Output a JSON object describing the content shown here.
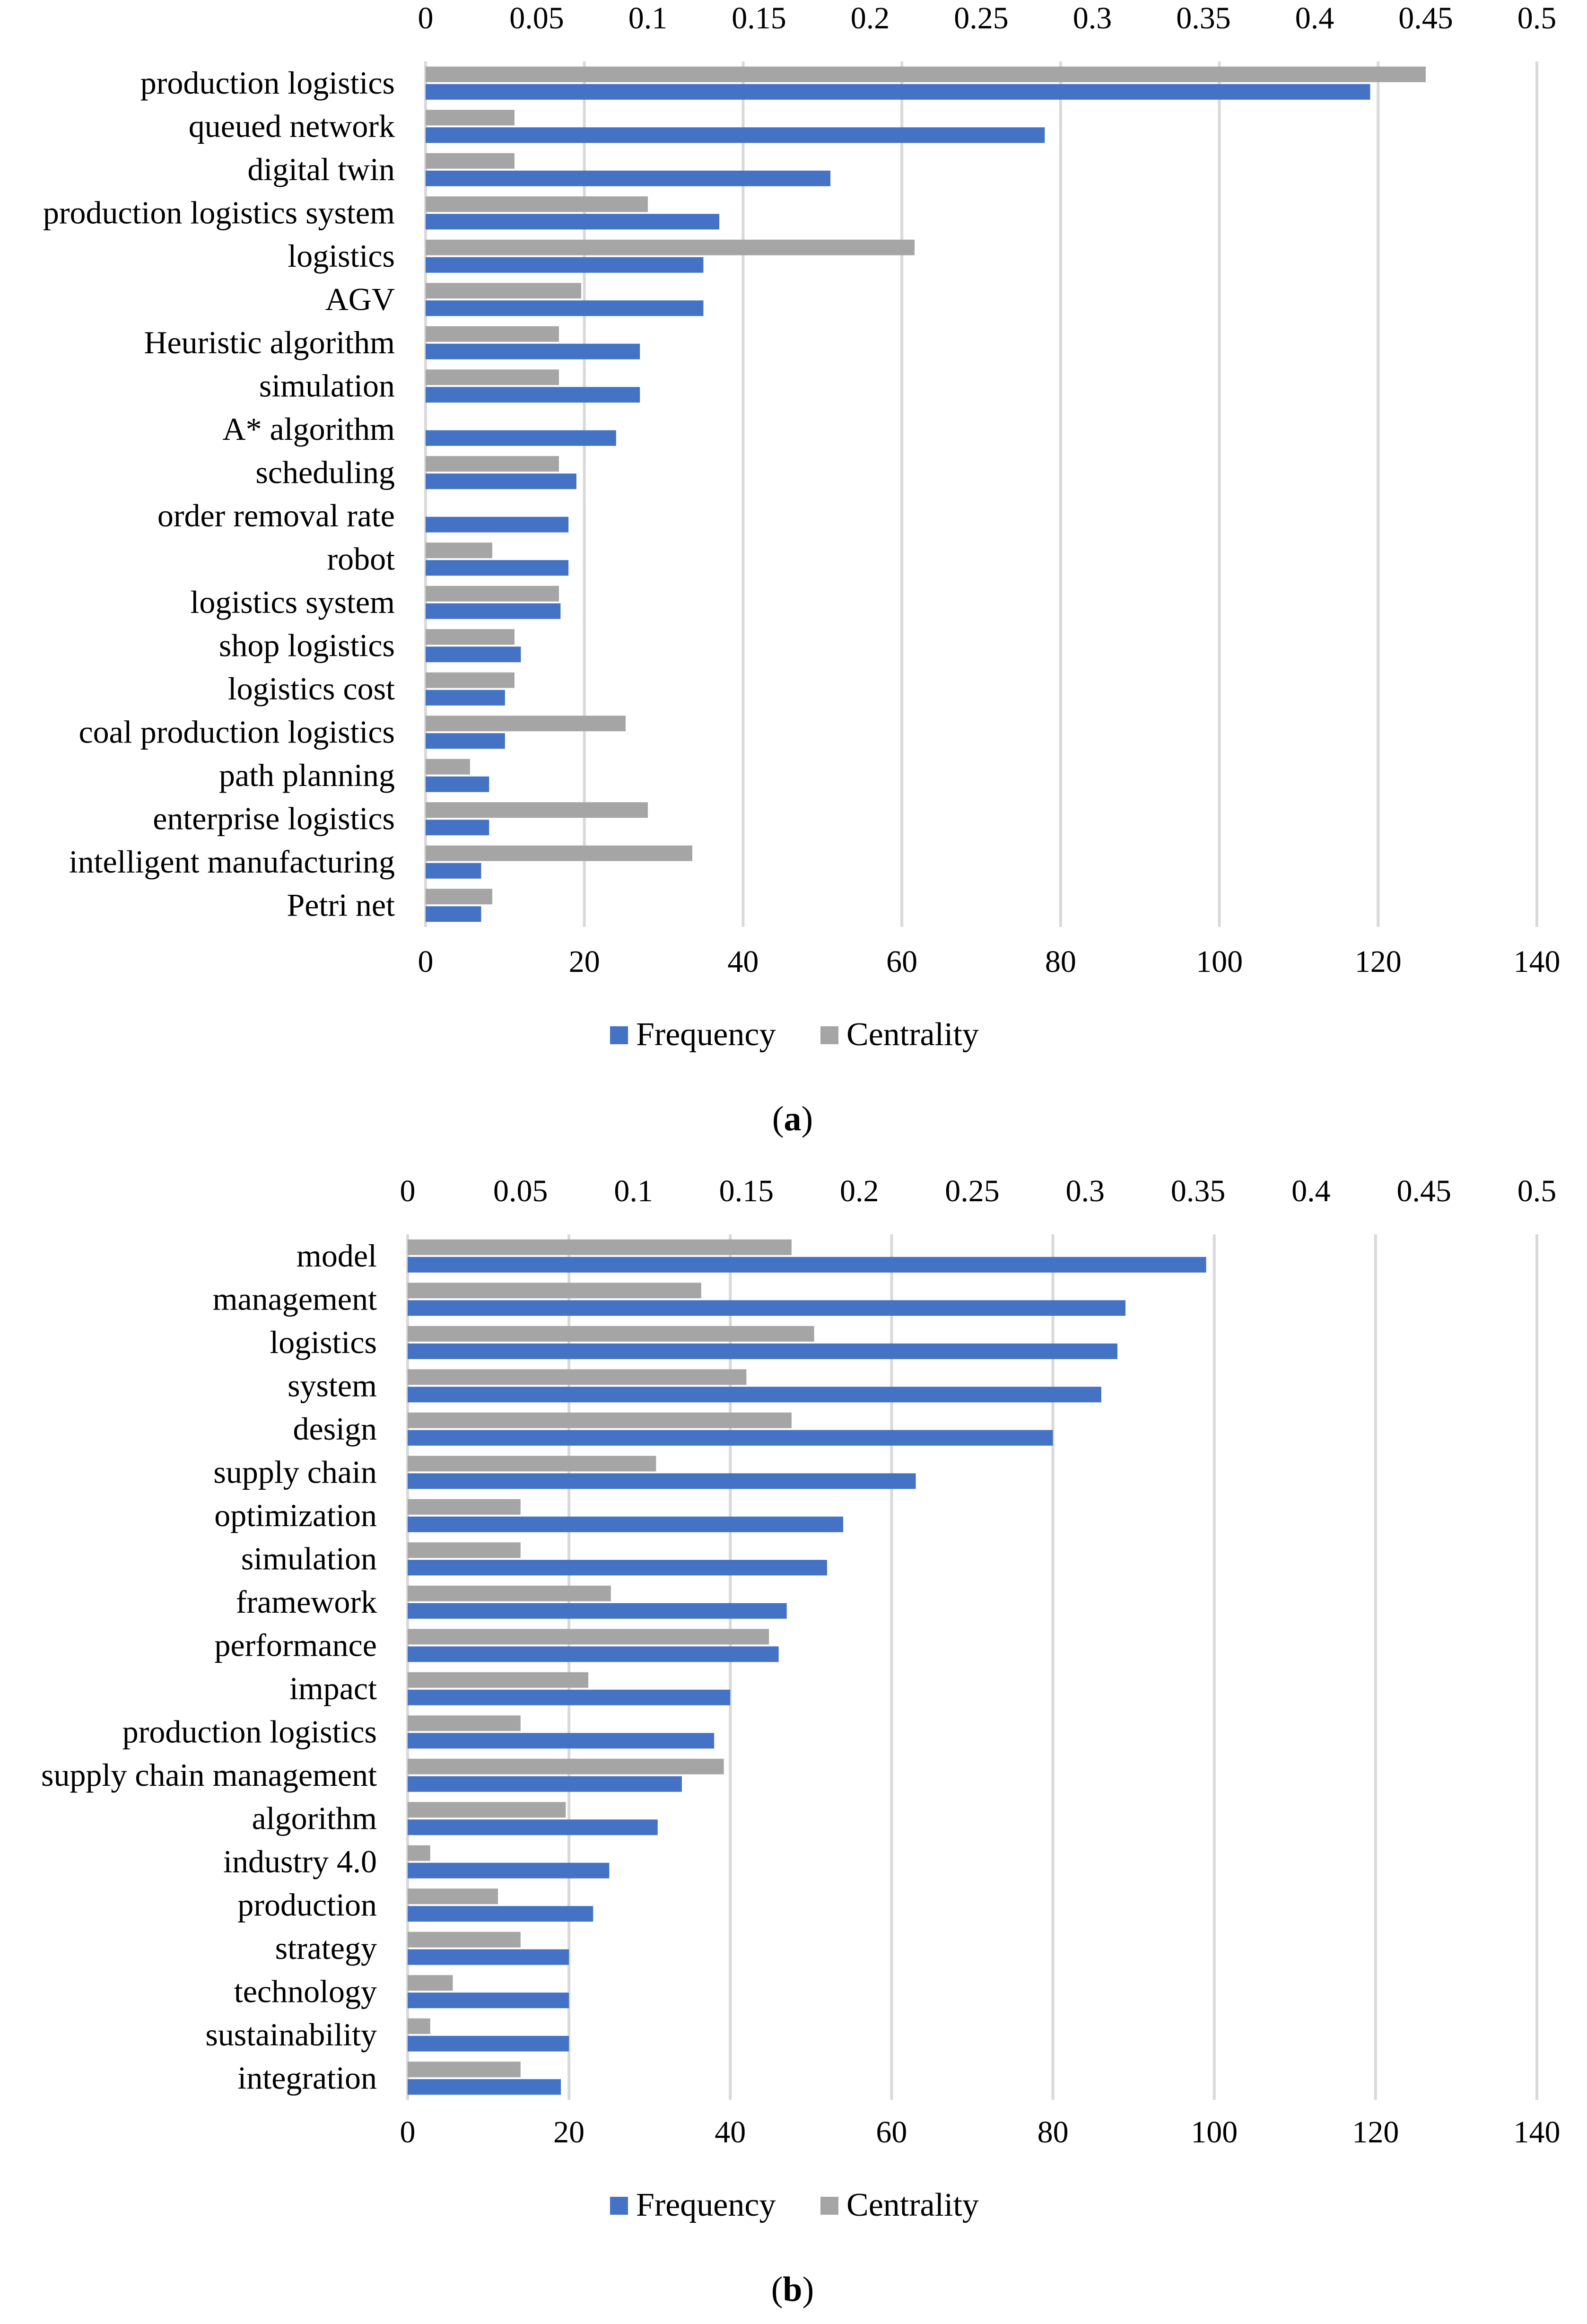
{
  "chart_data": [
    {
      "type": "bar",
      "orientation": "horizontal",
      "caption": "a",
      "categories": [
        "production logistics",
        "queued network",
        "digital twin",
        "production logistics system",
        "logistics",
        "AGV",
        "Heuristic algorithm",
        "simulation",
        "A* algorithm",
        "scheduling",
        "order removal rate",
        "robot",
        "logistics system",
        "shop logistics",
        "logistics cost",
        "coal production logistics",
        "path planning",
        "enterprise logistics",
        "intelligent manufacturing",
        "Petri net"
      ],
      "series": [
        {
          "name": "Frequency",
          "axis": "bottom",
          "color": "#4472C4",
          "values": [
            119,
            78,
            51,
            37,
            35,
            35,
            27,
            27,
            24,
            19,
            18,
            18,
            17,
            12,
            10,
            10,
            8,
            8,
            7,
            7
          ]
        },
        {
          "name": "Centrality",
          "axis": "top",
          "color": "#A5A5A5",
          "values": [
            0.45,
            0.04,
            0.04,
            0.1,
            0.22,
            0.07,
            0.06,
            0.06,
            0,
            0.06,
            0,
            0.03,
            0.06,
            0.04,
            0.04,
            0.09,
            0.02,
            0.1,
            0.12,
            0.03
          ]
        }
      ],
      "bottom_axis": {
        "min": 0,
        "max": 140,
        "ticks": [
          "0",
          "20",
          "40",
          "60",
          "80",
          "100",
          "120",
          "140"
        ]
      },
      "top_axis": {
        "min": 0,
        "max": 0.5,
        "ticks": [
          "0",
          "0.05",
          "0.1",
          "0.15",
          "0.2",
          "0.25",
          "0.3",
          "0.35",
          "0.4",
          "0.45",
          "0.5"
        ]
      },
      "legend": [
        "Frequency",
        "Centrality"
      ],
      "grid": true
    },
    {
      "type": "bar",
      "orientation": "horizontal",
      "caption": "b",
      "categories": [
        "model",
        "management",
        "logistics",
        "system",
        "design",
        "supply chain",
        "optimization",
        "simulation",
        "framework",
        "performance",
        "impact",
        "production logistics",
        "supply chain management",
        "algorithm",
        "industry 4.0",
        "production",
        "strategy",
        "technology",
        "sustainability",
        "integration"
      ],
      "series": [
        {
          "name": "Frequency",
          "axis": "bottom",
          "color": "#4472C4",
          "values": [
            99,
            89,
            88,
            86,
            80,
            63,
            54,
            52,
            47,
            46,
            40,
            38,
            34,
            31,
            25,
            23,
            20,
            20,
            20,
            19
          ]
        },
        {
          "name": "Centrality",
          "axis": "top",
          "color": "#A5A5A5",
          "values": [
            0.17,
            0.13,
            0.18,
            0.15,
            0.17,
            0.11,
            0.05,
            0.05,
            0.09,
            0.16,
            0.08,
            0.05,
            0.14,
            0.07,
            0.01,
            0.04,
            0.05,
            0.02,
            0.01,
            0.05
          ]
        }
      ],
      "bottom_axis": {
        "min": 0,
        "max": 140,
        "ticks": [
          "0",
          "20",
          "40",
          "60",
          "80",
          "100",
          "120",
          "140"
        ]
      },
      "top_axis": {
        "min": 0,
        "max": 0.5,
        "ticks": [
          "0",
          "0.05",
          "0.1",
          "0.15",
          "0.2",
          "0.25",
          "0.3",
          "0.35",
          "0.4",
          "0.45",
          "0.5"
        ]
      },
      "legend": [
        "Frequency",
        "Centrality"
      ],
      "grid": true
    }
  ]
}
